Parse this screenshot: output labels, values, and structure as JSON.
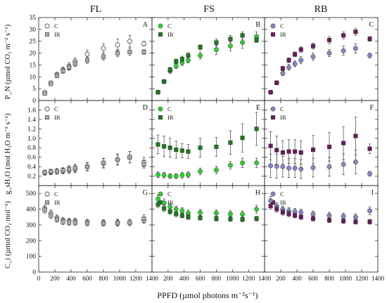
{
  "figure": {
    "column_titles": [
      "FL",
      "FS",
      "RB"
    ],
    "x_axis_title": "PPFD (µmol photons m⁻²s⁻¹)",
    "x_ticks": [
      0,
      200,
      400,
      600,
      800,
      1000,
      1200,
      1400
    ],
    "row_labels": [
      "P_N (µmol CO₂ m⁻² s⁻¹)",
      "g_sH₂O (mol H₂O m⁻² s⁻¹)",
      "C_i (µmol CO₂ mol⁻¹)"
    ]
  },
  "chart_data": [
    {
      "type": "scatter",
      "panel": "A",
      "column": "FL",
      "ylim": [
        0,
        35
      ],
      "yticks": [
        0,
        5,
        10,
        15,
        20,
        25,
        30,
        35
      ],
      "x": [
        75,
        150,
        225,
        300,
        375,
        450,
        600,
        800,
        975,
        1125,
        1300
      ],
      "legend": [
        "C",
        "IR"
      ],
      "series": [
        {
          "name": "C",
          "marker": "circle-open",
          "color": "#555555",
          "y": [
            3.5,
            7.5,
            11.0,
            13.0,
            14.5,
            16.5,
            19.5,
            22.0,
            23.5,
            25.0,
            24.0
          ],
          "err": [
            0.6,
            0.8,
            1.0,
            1.2,
            1.5,
            1.5,
            1.8,
            2.0,
            2.5,
            2.5,
            1.0
          ]
        },
        {
          "name": "IR",
          "marker": "square",
          "color": "#a6a6a6",
          "y": [
            3.0,
            7.0,
            10.5,
            12.5,
            14.0,
            15.5,
            17.0,
            18.5,
            20.0,
            20.5,
            20.5
          ],
          "err": [
            0.5,
            0.7,
            0.9,
            1.0,
            1.2,
            1.2,
            1.3,
            1.5,
            1.5,
            1.5,
            1.0
          ]
        }
      ]
    },
    {
      "type": "scatter",
      "panel": "B",
      "column": "FS",
      "ylim": [
        0,
        35
      ],
      "yticks": [
        0,
        5,
        10,
        15,
        20,
        25,
        30,
        35
      ],
      "x": [
        75,
        150,
        225,
        300,
        375,
        450,
        600,
        800,
        975,
        1125,
        1300
      ],
      "legend": [
        "C",
        "IR"
      ],
      "series": [
        {
          "name": "C",
          "marker": "circle",
          "color": "#33cc33",
          "y": [
            3.5,
            8.0,
            12.5,
            14.5,
            16.0,
            17.0,
            19.0,
            21.5,
            23.0,
            24.5,
            27.0
          ],
          "err": [
            0.5,
            0.8,
            1.0,
            1.0,
            1.2,
            1.2,
            1.5,
            2.0,
            2.0,
            2.5,
            2.0
          ]
        },
        {
          "name": "IR",
          "marker": "square",
          "color": "#1e7a1e",
          "y": [
            3.5,
            8.0,
            13.0,
            16.5,
            17.5,
            19.0,
            22.5,
            24.5,
            26.0,
            27.5,
            25.5
          ],
          "err": [
            0.5,
            0.8,
            1.0,
            1.0,
            1.2,
            1.2,
            1.0,
            1.5,
            1.5,
            1.5,
            1.0
          ]
        }
      ]
    },
    {
      "type": "scatter",
      "panel": "C",
      "column": "RB",
      "ylim": [
        0,
        35
      ],
      "yticks": [
        0,
        5,
        10,
        15,
        20,
        25,
        30,
        35
      ],
      "x": [
        75,
        150,
        225,
        300,
        375,
        450,
        600,
        800,
        975,
        1125,
        1300
      ],
      "legend": [
        "C",
        "IR"
      ],
      "series": [
        {
          "name": "C",
          "marker": "circle",
          "color": "#8585c2",
          "y": [
            3.5,
            7.5,
            11.5,
            14.0,
            15.5,
            17.0,
            18.5,
            20.0,
            21.0,
            22.0,
            19.0
          ],
          "err": [
            0.5,
            0.8,
            1.0,
            1.2,
            1.2,
            1.5,
            1.5,
            1.5,
            2.0,
            2.0,
            1.0
          ]
        },
        {
          "name": "IR",
          "marker": "square",
          "color": "#6b1a5c",
          "y": [
            3.5,
            7.5,
            13.5,
            17.0,
            19.5,
            21.5,
            23.0,
            25.5,
            27.5,
            29.0,
            26.0
          ],
          "err": [
            0.5,
            0.8,
            1.0,
            1.0,
            1.0,
            1.2,
            1.2,
            1.5,
            1.5,
            1.5,
            1.0
          ]
        }
      ]
    },
    {
      "type": "scatter",
      "panel": "D",
      "column": "FL",
      "ylim": [
        0,
        1.8
      ],
      "yticks": [
        0.2,
        0.4,
        0.6,
        0.8,
        1.0,
        1.2,
        1.4,
        1.6
      ],
      "x": [
        75,
        150,
        225,
        300,
        375,
        450,
        600,
        800,
        975,
        1125,
        1300
      ],
      "legend": [
        "C",
        "IR"
      ],
      "series": [
        {
          "name": "C",
          "marker": "circle-open",
          "color": "#555555",
          "y": [
            0.27,
            0.28,
            0.3,
            0.31,
            0.33,
            0.35,
            0.4,
            0.47,
            0.55,
            0.6,
            0.5
          ],
          "err": [
            0.05,
            0.05,
            0.06,
            0.06,
            0.07,
            0.08,
            0.09,
            0.1,
            0.12,
            0.12,
            0.1
          ]
        },
        {
          "name": "IR",
          "marker": "square",
          "color": "#a6a6a6",
          "y": [
            0.28,
            0.3,
            0.3,
            0.32,
            0.35,
            0.37,
            0.4,
            0.48,
            0.55,
            0.6,
            0.45
          ],
          "err": [
            0.05,
            0.05,
            0.06,
            0.06,
            0.07,
            0.08,
            0.08,
            0.1,
            0.1,
            0.12,
            0.08
          ]
        }
      ]
    },
    {
      "type": "scatter",
      "panel": "E",
      "column": "FS",
      "ylim": [
        0,
        1.8
      ],
      "yticks": [
        0.2,
        0.4,
        0.6,
        0.8,
        1.0,
        1.2,
        1.4,
        1.6
      ],
      "x": [
        75,
        150,
        225,
        300,
        375,
        450,
        600,
        800,
        975,
        1125,
        1300
      ],
      "legend": [
        "C",
        "IR"
      ],
      "series": [
        {
          "name": "C",
          "marker": "circle",
          "color": "#33cc33",
          "y": [
            0.23,
            0.22,
            0.2,
            0.2,
            0.22,
            0.23,
            0.3,
            0.33,
            0.43,
            0.48,
            0.48
          ],
          "err": [
            0.06,
            0.06,
            0.05,
            0.05,
            0.06,
            0.06,
            0.07,
            0.08,
            0.08,
            0.1,
            0.1
          ]
        },
        {
          "name": "IR",
          "marker": "square",
          "color": "#1e7a1e",
          "y": [
            0.87,
            0.83,
            0.8,
            0.76,
            0.74,
            0.72,
            0.8,
            0.82,
            0.91,
            1.01,
            1.2
          ],
          "err": [
            0.2,
            0.22,
            0.2,
            0.18,
            0.15,
            0.15,
            0.2,
            0.2,
            0.25,
            0.3,
            0.35
          ]
        }
      ]
    },
    {
      "type": "scatter",
      "panel": "F",
      "column": "RB",
      "ylim": [
        0,
        1.8
      ],
      "yticks": [
        0.2,
        0.4,
        0.6,
        0.8,
        1.0,
        1.2,
        1.4,
        1.6
      ],
      "x": [
        75,
        150,
        225,
        300,
        375,
        450,
        600,
        800,
        975,
        1125,
        1300
      ],
      "legend": [
        "C",
        "IR"
      ],
      "series": [
        {
          "name": "C",
          "marker": "circle",
          "color": "#8585c2",
          "y": [
            0.42,
            0.41,
            0.4,
            0.37,
            0.37,
            0.35,
            0.38,
            0.4,
            0.45,
            0.5,
            0.25
          ],
          "err": [
            0.25,
            0.25,
            0.22,
            0.2,
            0.2,
            0.2,
            0.2,
            0.2,
            0.22,
            0.25,
            0.05
          ]
        },
        {
          "name": "IR",
          "marker": "square",
          "color": "#6b1a5c",
          "y": [
            0.84,
            0.75,
            0.7,
            0.72,
            0.72,
            0.7,
            0.76,
            0.82,
            0.9,
            1.05,
            0.78
          ],
          "err": [
            0.3,
            0.3,
            0.25,
            0.25,
            0.25,
            0.25,
            0.3,
            0.3,
            0.35,
            0.4,
            0.1
          ]
        }
      ]
    },
    {
      "type": "scatter",
      "panel": "G",
      "column": "FL",
      "ylim": [
        0,
        550
      ],
      "yticks": [
        0,
        100,
        200,
        300,
        400,
        500
      ],
      "x": [
        75,
        150,
        225,
        300,
        375,
        450,
        600,
        800,
        975,
        1125,
        1300
      ],
      "legend": [
        "C",
        "IR"
      ],
      "series": [
        {
          "name": "C",
          "marker": "circle-open",
          "color": "#555555",
          "y": [
            405,
            375,
            345,
            330,
            325,
            325,
            318,
            315,
            315,
            315,
            330
          ],
          "err": [
            20,
            20,
            18,
            18,
            18,
            18,
            18,
            18,
            20,
            20,
            20
          ]
        },
        {
          "name": "IR",
          "marker": "square",
          "color": "#a6a6a6",
          "y": [
            395,
            360,
            335,
            320,
            315,
            315,
            312,
            310,
            312,
            315,
            340
          ],
          "err": [
            20,
            20,
            18,
            18,
            18,
            18,
            18,
            18,
            20,
            20,
            25
          ]
        }
      ]
    },
    {
      "type": "scatter",
      "panel": "H",
      "column": "FS",
      "ylim": [
        0,
        550
      ],
      "yticks": [
        0,
        100,
        200,
        300,
        400,
        500
      ],
      "x": [
        75,
        150,
        225,
        300,
        375,
        450,
        600,
        800,
        975,
        1125,
        1300
      ],
      "legend": [
        "C",
        "IR"
      ],
      "series": [
        {
          "name": "C",
          "marker": "circle",
          "color": "#33cc33",
          "y": [
            465,
            440,
            415,
            400,
            390,
            375,
            378,
            375,
            370,
            368,
            400
          ],
          "err": [
            25,
            25,
            20,
            20,
            20,
            20,
            20,
            20,
            20,
            20,
            25
          ]
        },
        {
          "name": "IR",
          "marker": "square",
          "color": "#1e7a1e",
          "y": [
            430,
            405,
            385,
            370,
            360,
            350,
            345,
            340,
            338,
            335,
            340
          ],
          "err": [
            20,
            20,
            18,
            18,
            15,
            15,
            15,
            15,
            15,
            15,
            15
          ]
        }
      ]
    },
    {
      "type": "scatter",
      "panel": "I",
      "column": "RB",
      "ylim": [
        0,
        550
      ],
      "yticks": [
        0,
        100,
        200,
        300,
        400,
        500
      ],
      "x": [
        75,
        150,
        225,
        300,
        375,
        450,
        600,
        800,
        975,
        1125,
        1300
      ],
      "legend": [
        "C",
        "IR"
      ],
      "series": [
        {
          "name": "C",
          "marker": "circle",
          "color": "#8585c2",
          "y": [
            455,
            420,
            400,
            390,
            385,
            380,
            368,
            360,
            355,
            350,
            390
          ],
          "err": [
            25,
            22,
            20,
            20,
            20,
            20,
            20,
            20,
            20,
            20,
            25
          ]
        },
        {
          "name": "IR",
          "marker": "square",
          "color": "#6b1a5c",
          "y": [
            420,
            400,
            380,
            370,
            360,
            350,
            340,
            330,
            325,
            320,
            320
          ],
          "err": [
            20,
            20,
            18,
            18,
            15,
            15,
            15,
            15,
            15,
            15,
            15
          ]
        }
      ]
    }
  ]
}
